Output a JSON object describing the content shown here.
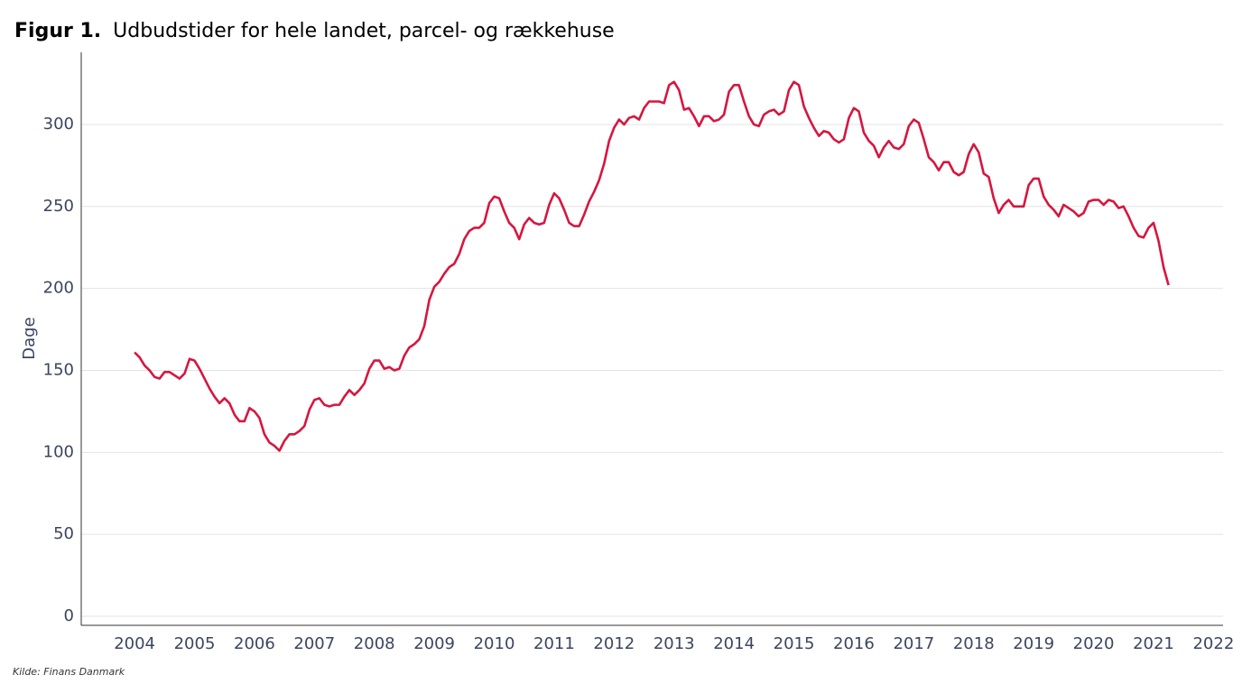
{
  "chart_data": {
    "type": "line",
    "figure_label": "Figur 1.",
    "title": "Udbudstider for hele landet, parcel- og rækkehuse",
    "ylabel": "Dage",
    "source": "Kilde: Finans Danmark",
    "color": "#d6163f",
    "grid": true,
    "xlim": [
      2003.11,
      2022.16
    ],
    "xticks": [
      2004,
      2005,
      2006,
      2007,
      2008,
      2009,
      2010,
      2011,
      2012,
      2013,
      2014,
      2015,
      2016,
      2017,
      2018,
      2019,
      2020,
      2021,
      2022
    ],
    "ylim": [
      -5.5,
      344
    ],
    "yticks": [
      0,
      50,
      100,
      150,
      200,
      250,
      300
    ],
    "x": [
      2004,
      2004.083,
      2004.167,
      2004.25,
      2004.333,
      2004.417,
      2004.5,
      2004.583,
      2004.667,
      2004.75,
      2004.833,
      2004.917,
      2005,
      2005.083,
      2005.167,
      2005.25,
      2005.333,
      2005.417,
      2005.5,
      2005.583,
      2005.667,
      2005.75,
      2005.833,
      2005.917,
      2006,
      2006.083,
      2006.167,
      2006.25,
      2006.333,
      2006.417,
      2006.5,
      2006.583,
      2006.667,
      2006.75,
      2006.833,
      2006.917,
      2007,
      2007.083,
      2007.167,
      2007.25,
      2007.333,
      2007.417,
      2007.5,
      2007.583,
      2007.667,
      2007.75,
      2007.833,
      2007.917,
      2008,
      2008.083,
      2008.167,
      2008.25,
      2008.333,
      2008.417,
      2008.5,
      2008.583,
      2008.667,
      2008.75,
      2008.833,
      2008.917,
      2009,
      2009.083,
      2009.167,
      2009.25,
      2009.333,
      2009.417,
      2009.5,
      2009.583,
      2009.667,
      2009.75,
      2009.833,
      2009.917,
      2010,
      2010.083,
      2010.167,
      2010.25,
      2010.333,
      2010.417,
      2010.5,
      2010.583,
      2010.667,
      2010.75,
      2010.833,
      2010.917,
      2011,
      2011.083,
      2011.167,
      2011.25,
      2011.333,
      2011.417,
      2011.5,
      2011.583,
      2011.667,
      2011.75,
      2011.833,
      2011.917,
      2012,
      2012.083,
      2012.167,
      2012.25,
      2012.333,
      2012.417,
      2012.5,
      2012.583,
      2012.667,
      2012.75,
      2012.833,
      2012.917,
      2013,
      2013.083,
      2013.167,
      2013.25,
      2013.333,
      2013.417,
      2013.5,
      2013.583,
      2013.667,
      2013.75,
      2013.833,
      2013.917,
      2014,
      2014.083,
      2014.167,
      2014.25,
      2014.333,
      2014.417,
      2014.5,
      2014.583,
      2014.667,
      2014.75,
      2014.833,
      2014.917,
      2015,
      2015.083,
      2015.167,
      2015.25,
      2015.333,
      2015.417,
      2015.5,
      2015.583,
      2015.667,
      2015.75,
      2015.833,
      2015.917,
      2016,
      2016.083,
      2016.167,
      2016.25,
      2016.333,
      2016.417,
      2016.5,
      2016.583,
      2016.667,
      2016.75,
      2016.833,
      2016.917,
      2017,
      2017.083,
      2017.167,
      2017.25,
      2017.333,
      2017.417,
      2017.5,
      2017.583,
      2017.667,
      2017.75,
      2017.833,
      2017.917,
      2018,
      2018.083,
      2018.167,
      2018.25,
      2018.333,
      2018.417,
      2018.5,
      2018.583,
      2018.667,
      2018.75,
      2018.833,
      2018.917,
      2019,
      2019.083,
      2019.167,
      2019.25,
      2019.333,
      2019.417,
      2019.5,
      2019.583,
      2019.667,
      2019.75,
      2019.833,
      2019.917,
      2020,
      2020.083,
      2020.167,
      2020.25,
      2020.333,
      2020.417,
      2020.5,
      2020.583,
      2020.667,
      2020.75,
      2020.833,
      2020.917,
      2021,
      2021.083,
      2021.167,
      2021.25
    ],
    "values": [
      161,
      158,
      153,
      150,
      146,
      145,
      149,
      149,
      147,
      145,
      148,
      157,
      156,
      151,
      145,
      139,
      134,
      130,
      133,
      130,
      123,
      119,
      119,
      127,
      125,
      121,
      111,
      106,
      104,
      101,
      107,
      111,
      111,
      113,
      116,
      126,
      132,
      133,
      129,
      128,
      129,
      129,
      134,
      138,
      135,
      138,
      142,
      151,
      156,
      156,
      151,
      152,
      150,
      151,
      159,
      164,
      166,
      169,
      177,
      193,
      201,
      204,
      209,
      213,
      215,
      221,
      230,
      235,
      237,
      237,
      240,
      252,
      256,
      255,
      247,
      240,
      237,
      230,
      239,
      243,
      240,
      239,
      240,
      251,
      258,
      255,
      248,
      240,
      238,
      238,
      245,
      253,
      259,
      266,
      276,
      290,
      298,
      303,
      300,
      304,
      305,
      303,
      310,
      314,
      314,
      314,
      313,
      324,
      326,
      321,
      309,
      310,
      305,
      299,
      305,
      305,
      302,
      303,
      306,
      320,
      324,
      324,
      314,
      305,
      300,
      299,
      306,
      308,
      309,
      306,
      308,
      321,
      326,
      324,
      311,
      304,
      298,
      293,
      296,
      295,
      291,
      289,
      291,
      304,
      310,
      308,
      295,
      290,
      287,
      280,
      286,
      290,
      286,
      285,
      288,
      299,
      303,
      301,
      291,
      280,
      277,
      272,
      277,
      277,
      271,
      269,
      271,
      282,
      288,
      283,
      270,
      268,
      255,
      246,
      251,
      254,
      250,
      250,
      250,
      263,
      267,
      267,
      256,
      251,
      248,
      244,
      251,
      249,
      247,
      244,
      246,
      253,
      254,
      254,
      251,
      254,
      253,
      249,
      250,
      244,
      237,
      232,
      231,
      237,
      240,
      229,
      213,
      202
    ]
  }
}
